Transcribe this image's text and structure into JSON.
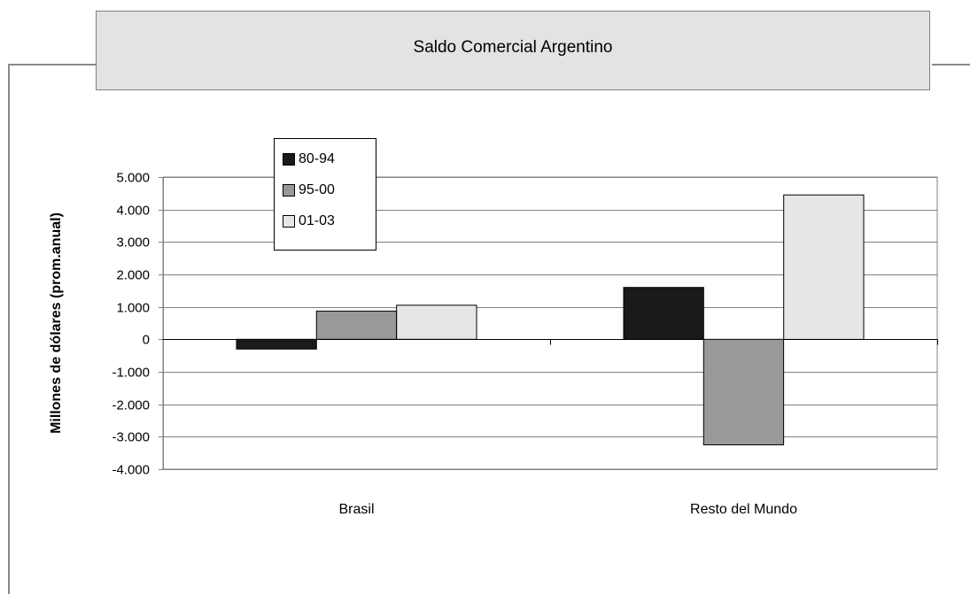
{
  "chart_data": {
    "type": "bar",
    "title": "Saldo Comercial Argentino",
    "ylabel": "Millones de dólares (prom.anual)",
    "xlabel": "",
    "categories": [
      "Brasil",
      "Resto del Mundo"
    ],
    "series": [
      {
        "name": "80-94",
        "color": "#1a1a1a",
        "values": [
          -300,
          1600
        ]
      },
      {
        "name": "95-00",
        "color": "#999999",
        "values": [
          870,
          -3250
        ]
      },
      {
        "name": "01-03",
        "color": "#e6e6e6",
        "values": [
          1050,
          4450
        ]
      }
    ],
    "ylim": [
      -4000,
      5000
    ],
    "yticks": [
      {
        "value": 5000,
        "label": "5.000"
      },
      {
        "value": 4000,
        "label": "4.000"
      },
      {
        "value": 3000,
        "label": "3.000"
      },
      {
        "value": 2000,
        "label": "2.000"
      },
      {
        "value": 1000,
        "label": "1.000"
      },
      {
        "value": 0,
        "label": "0"
      },
      {
        "value": -1000,
        "label": "-1.000"
      },
      {
        "value": -2000,
        "label": "-2.000"
      },
      {
        "value": -3000,
        "label": "-3.000"
      },
      {
        "value": -4000,
        "label": "-4.000"
      }
    ],
    "grid": true,
    "legend_position": "top-left"
  }
}
